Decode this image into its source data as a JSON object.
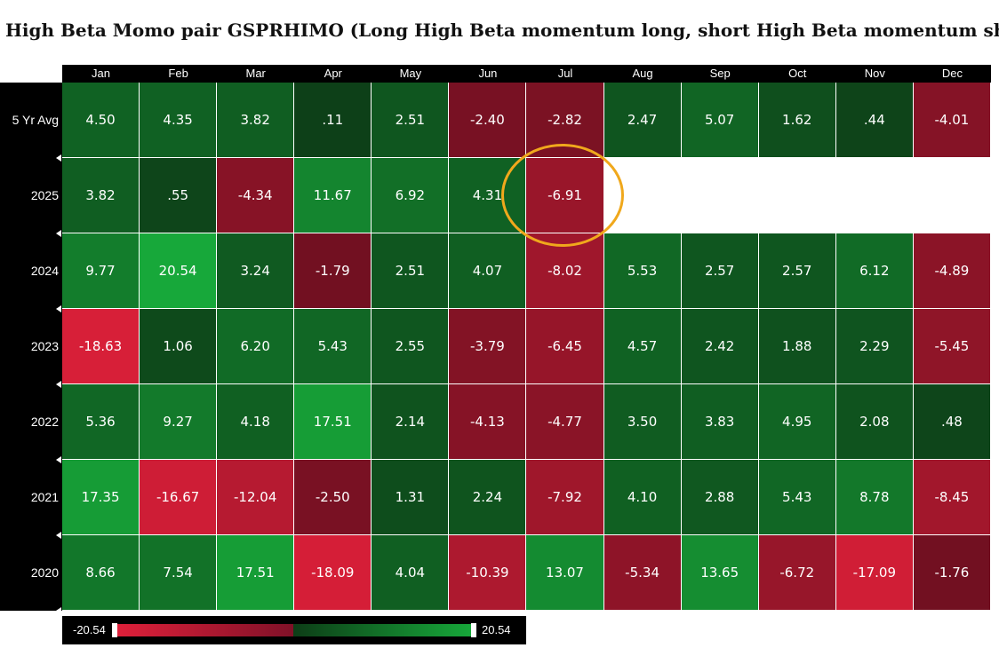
{
  "title": "High Beta Momo pair GSPRHIMO (Long High Beta momentum long, short High Beta momentum short)",
  "chart_data": {
    "type": "heatmap",
    "title": "High Beta Momo pair GSPRHIMO (Long High Beta momentum long, short High Beta momentum short)",
    "columns": [
      "Jan",
      "Feb",
      "Mar",
      "Apr",
      "May",
      "Jun",
      "Jul",
      "Aug",
      "Sep",
      "Oct",
      "Nov",
      "Dec"
    ],
    "rows": [
      {
        "label": "5 Yr Avg",
        "values": [
          "4.50",
          "4.35",
          "3.82",
          ".11",
          "2.51",
          "-2.40",
          "-2.82",
          "2.47",
          "5.07",
          "1.62",
          ".44",
          "-4.01"
        ]
      },
      {
        "label": "2025",
        "values": [
          "3.82",
          ".55",
          "-4.34",
          "11.67",
          "6.92",
          "4.31",
          "-6.91",
          null,
          null,
          null,
          null,
          null
        ]
      },
      {
        "label": "2024",
        "values": [
          "9.77",
          "20.54",
          "3.24",
          "-1.79",
          "2.51",
          "4.07",
          "-8.02",
          "5.53",
          "2.57",
          "2.57",
          "6.12",
          "-4.89"
        ]
      },
      {
        "label": "2023",
        "values": [
          "-18.63",
          "1.06",
          "6.20",
          "5.43",
          "2.55",
          "-3.79",
          "-6.45",
          "4.57",
          "2.42",
          "1.88",
          "2.29",
          "-5.45"
        ]
      },
      {
        "label": "2022",
        "values": [
          "5.36",
          "9.27",
          "4.18",
          "17.51",
          "2.14",
          "-4.13",
          "-4.77",
          "3.50",
          "3.83",
          "4.95",
          "2.08",
          ".48"
        ]
      },
      {
        "label": "2021",
        "values": [
          "17.35",
          "-16.67",
          "-12.04",
          "-2.50",
          "1.31",
          "2.24",
          "-7.92",
          "4.10",
          "2.88",
          "5.43",
          "8.78",
          "-8.45"
        ]
      },
      {
        "label": "2020",
        "values": [
          "8.66",
          "7.54",
          "17.51",
          "-18.09",
          "4.04",
          "-10.39",
          "13.07",
          "-5.34",
          "13.65",
          "-6.72",
          "-17.09",
          "-1.76"
        ]
      }
    ],
    "scale": {
      "min": "-20.54",
      "max": "20.54"
    },
    "highlight": {
      "row": "2025",
      "column": "Jul"
    },
    "colors": {
      "neg_strong": "#e0203a",
      "neg_weak": "#5a0d1c",
      "pos_weak": "#0d3d17",
      "pos_strong": "#17a83a",
      "highlight_ring": "#f0a81c"
    }
  }
}
